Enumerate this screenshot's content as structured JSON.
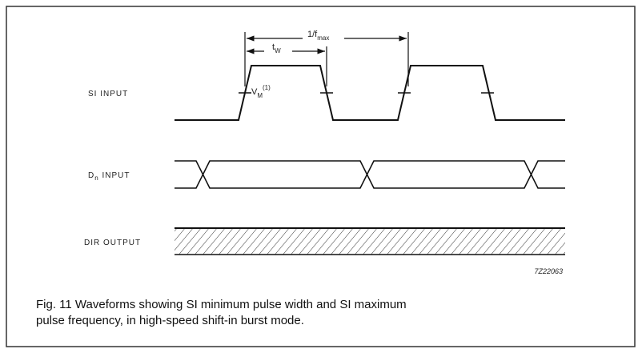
{
  "signals": [
    {
      "label": "SI INPUT"
    },
    {
      "label": {
        "base": "D",
        "sub": "n",
        "rest": " INPUT"
      }
    },
    {
      "label": "DIR OUTPUT"
    }
  ],
  "annotations": {
    "period": {
      "base": "1/f",
      "sub": "max"
    },
    "pulse_width": {
      "base": "t",
      "sub": "W"
    },
    "threshold": {
      "base": "V",
      "sub": "M",
      "sup": "(1)"
    }
  },
  "figure_id": "7Z22063",
  "caption": {
    "lines": [
      "Fig. 11 Waveforms showing SI minimum pulse width and SI maximum",
      "pulse frequency, in high-speed shift-in burst mode."
    ]
  }
}
